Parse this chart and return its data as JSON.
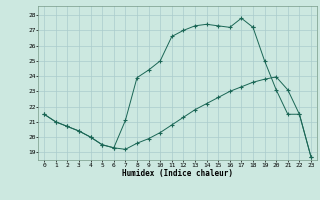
{
  "xlabel": "Humidex (Indice chaleur)",
  "background_color": "#cce8e0",
  "grid_color": "#aacccc",
  "line_color": "#1a6655",
  "xlim": [
    -0.5,
    23.5
  ],
  "ylim": [
    18.5,
    28.6
  ],
  "yticks": [
    19,
    20,
    21,
    22,
    23,
    24,
    25,
    26,
    27,
    28
  ],
  "xticks": [
    0,
    1,
    2,
    3,
    4,
    5,
    6,
    7,
    8,
    9,
    10,
    11,
    12,
    13,
    14,
    15,
    16,
    17,
    18,
    19,
    20,
    21,
    22,
    23
  ],
  "line1_x": [
    0,
    1,
    2,
    3,
    4,
    5,
    6,
    7,
    8,
    9,
    10,
    11,
    12,
    13,
    14,
    15,
    16,
    17,
    18
  ],
  "line1_y": [
    21.5,
    21.0,
    20.7,
    20.4,
    20.0,
    19.5,
    19.3,
    21.1,
    23.9,
    24.4,
    25.0,
    26.6,
    27.0,
    27.3,
    27.4,
    27.3,
    27.2,
    27.8,
    27.2
  ],
  "line2_x": [
    0,
    1,
    2,
    3,
    4,
    5,
    6,
    7,
    8,
    9,
    10,
    11,
    12,
    13,
    14,
    15,
    16,
    17,
    18,
    19,
    20,
    21,
    22,
    23
  ],
  "line2_y": [
    21.5,
    21.0,
    20.7,
    20.4,
    20.0,
    19.5,
    19.3,
    19.2,
    19.6,
    19.9,
    20.3,
    20.8,
    21.3,
    21.8,
    22.2,
    22.6,
    23.0,
    23.3,
    23.6,
    23.8,
    23.95,
    23.1,
    21.5,
    18.7
  ],
  "line3_x": [
    18,
    19,
    20,
    21,
    22,
    23
  ],
  "line3_y": [
    27.2,
    25.0,
    23.1,
    21.5,
    21.5,
    18.7
  ]
}
